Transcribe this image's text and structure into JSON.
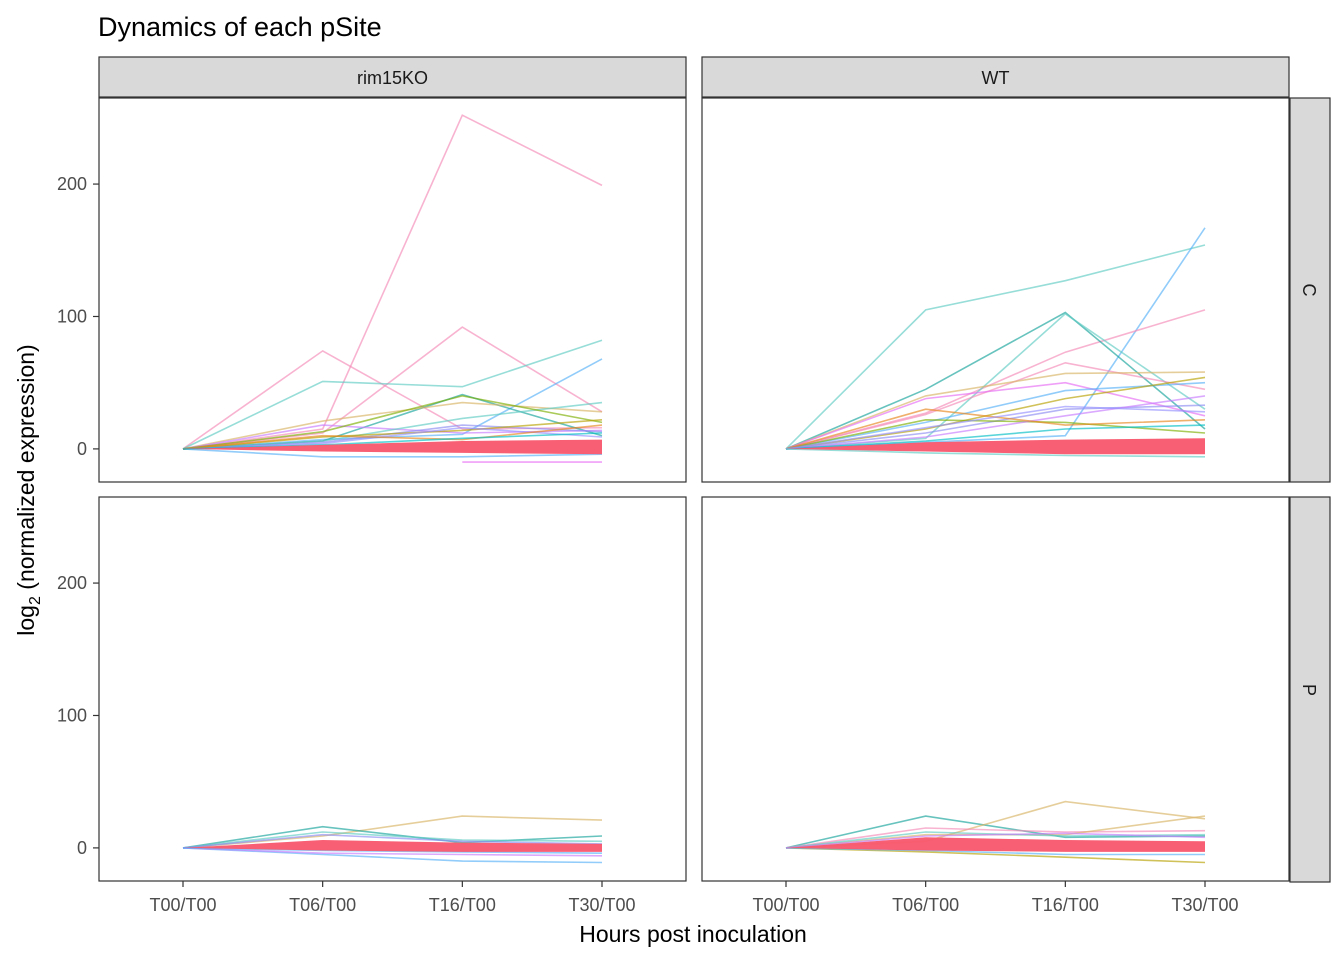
{
  "chart_data": {
    "type": "line",
    "title": "Dynamics of each pSite",
    "xlabel": "Hours post inoculation",
    "ylabel_main": "log",
    "ylabel_sub": "2",
    "ylabel_rest": " (normalized expression)",
    "categories": [
      "T00/T00",
      "T06/T00",
      "T16/T00",
      "T30/T00"
    ],
    "ylim": [
      -25,
      265
    ],
    "yticks": [
      0,
      100,
      200
    ],
    "grid": false,
    "legend": "none",
    "facet_columns": [
      "rim15KO",
      "WT"
    ],
    "facet_rows": [
      "C",
      "P"
    ],
    "panels": [
      {
        "col": 0,
        "row": 0,
        "band": {
          "upper": [
            0,
            3,
            6,
            7
          ],
          "lower": [
            0,
            -2,
            -3,
            -4
          ],
          "color": "#f8566d"
        },
        "series": [
          {
            "values": [
              0,
              15,
              252,
              199
            ],
            "color": "#f58ab7"
          },
          {
            "values": [
              0,
              74,
              15,
              16
            ],
            "color": "#f58ab7"
          },
          {
            "values": [
              0,
              12,
              92,
              28
            ],
            "color": "#f58ab7"
          },
          {
            "values": [
              0,
              51,
              47,
              82
            ],
            "color": "#5fcbc3"
          },
          {
            "values": [
              0,
              7,
              11,
              68
            ],
            "color": "#56b1f7"
          },
          {
            "values": [
              0,
              6,
              41,
              10
            ],
            "color": "#16a39b"
          },
          {
            "values": [
              0,
              21,
              35,
              28
            ],
            "color": "#d8b365"
          },
          {
            "values": [
              0,
              18,
              12,
              14
            ],
            "color": "#c77cff"
          },
          {
            "values": [
              0,
              6,
              23,
              35
            ],
            "color": "#5fcbc3"
          },
          {
            "values": [
              0,
              13,
              40,
              20
            ],
            "color": "#7cae00"
          },
          {
            "values": [
              0,
              5,
              18,
              13
            ],
            "color": "#8c8cf2"
          },
          {
            "values": [
              0,
              -6,
              -6,
              -4
            ],
            "color": "#56b1f7"
          },
          {
            "values": [
              null,
              null,
              -10,
              -10
            ],
            "color": "#e76bf3"
          },
          {
            "values": [
              0,
              9,
              14,
              22
            ],
            "color": "#b79f00"
          },
          {
            "values": [
              0,
              4,
              16,
              9
            ],
            "color": "#9590ff"
          },
          {
            "values": [
              0,
              10,
              7,
              18
            ],
            "color": "#e7861b"
          },
          {
            "values": [
              0,
              3,
              8,
              12
            ],
            "color": "#00bfc4"
          }
        ]
      },
      {
        "col": 1,
        "row": 0,
        "band": {
          "upper": [
            0,
            5,
            7,
            8
          ],
          "lower": [
            0,
            -2,
            -4,
            -4
          ],
          "color": "#f8566d"
        },
        "series": [
          {
            "values": [
              0,
              105,
              127,
              154
            ],
            "color": "#5fcbc3"
          },
          {
            "values": [
              0,
              5,
              10,
              167
            ],
            "color": "#56b1f7"
          },
          {
            "values": [
              0,
              27,
              73,
              105
            ],
            "color": "#f58ab7"
          },
          {
            "values": [
              0,
              45,
              103,
              15
            ],
            "color": "#16a39b"
          },
          {
            "values": [
              0,
              8,
              102,
              30
            ],
            "color": "#5fcbc3"
          },
          {
            "values": [
              0,
              26,
              65,
              45
            ],
            "color": "#f58ab7"
          },
          {
            "values": [
              0,
              40,
              57,
              58
            ],
            "color": "#d8b365"
          },
          {
            "values": [
              0,
              38,
              50,
              25
            ],
            "color": "#e76bf3"
          },
          {
            "values": [
              0,
              20,
              44,
              50
            ],
            "color": "#56b1f7"
          },
          {
            "values": [
              0,
              15,
              38,
              54
            ],
            "color": "#b79f00"
          },
          {
            "values": [
              0,
              12,
              30,
              33
            ],
            "color": "#8c8cf2"
          },
          {
            "values": [
              0,
              22,
              20,
              12
            ],
            "color": "#7cae00"
          },
          {
            "values": [
              0,
              9,
              25,
              40
            ],
            "color": "#c77cff"
          },
          {
            "values": [
              0,
              30,
              18,
              22
            ],
            "color": "#e7861b"
          },
          {
            "values": [
              0,
              6,
              15,
              18
            ],
            "color": "#00bfc4"
          },
          {
            "values": [
              0,
              16,
              32,
              28
            ],
            "color": "#9590ff"
          },
          {
            "values": [
              0,
              -3,
              -5,
              -6
            ],
            "color": "#5fcbc3"
          }
        ]
      },
      {
        "col": 0,
        "row": 1,
        "band": {
          "upper": [
            0,
            6,
            4,
            3
          ],
          "lower": [
            0,
            -2,
            -3,
            -3
          ],
          "color": "#f8566d"
        },
        "series": [
          {
            "values": [
              0,
              9,
              24,
              21
            ],
            "color": "#d8b365"
          },
          {
            "values": [
              0,
              16,
              4,
              9
            ],
            "color": "#16a39b"
          },
          {
            "values": [
              0,
              12,
              6,
              5
            ],
            "color": "#5fcbc3"
          },
          {
            "values": [
              0,
              -5,
              -10,
              -11
            ],
            "color": "#56b1f7"
          },
          {
            "values": [
              0,
              -4,
              -5,
              -6
            ],
            "color": "#c77cff"
          },
          {
            "values": [
              0,
              10,
              5,
              3
            ],
            "color": "#8c8cf2"
          },
          {
            "values": [
              0,
              -2,
              -3,
              -4
            ],
            "color": "#56b1f7"
          }
        ]
      },
      {
        "col": 1,
        "row": 1,
        "band": {
          "upper": [
            0,
            8,
            6,
            5
          ],
          "lower": [
            0,
            -2,
            -3,
            -3
          ],
          "color": "#f8566d"
        },
        "series": [
          {
            "values": [
              0,
              24,
              8,
              9
            ],
            "color": "#16a39b"
          },
          {
            "values": [
              0,
              5,
              35,
              22
            ],
            "color": "#d8b365"
          },
          {
            "values": [
              0,
              15,
              12,
              13
            ],
            "color": "#f58ab7"
          },
          {
            "values": [
              0,
              10,
              10,
              24
            ],
            "color": "#d8b365"
          },
          {
            "values": [
              0,
              -3,
              -7,
              -11
            ],
            "color": "#b79f00"
          },
          {
            "values": [
              0,
              -2,
              -5,
              -5
            ],
            "color": "#56b1f7"
          },
          {
            "values": [
              0,
              12,
              9,
              10
            ],
            "color": "#5fcbc3"
          },
          {
            "values": [
              0,
              9,
              11,
              8
            ],
            "color": "#c77cff"
          }
        ]
      }
    ]
  }
}
